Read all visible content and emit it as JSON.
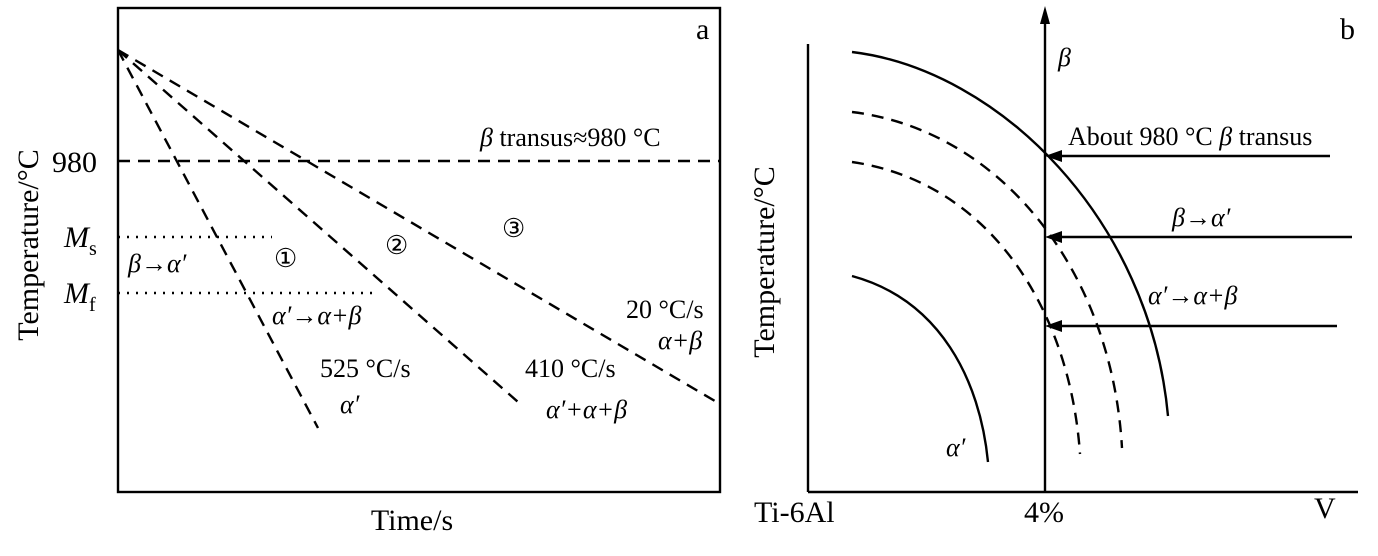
{
  "panel_a": {
    "panel_letter": "a",
    "ylabel": "Temperature/°C",
    "xlabel": "Time/s",
    "y_tick_980": "980",
    "ms_symbol": "M",
    "ms_sub": "s",
    "mf_symbol": "M",
    "mf_sub": "f",
    "transus_beta": "β",
    "transus_rest": " transus≈980 °C",
    "beta_to_alpha_prime": "β→α′",
    "decomp_label": "α′→α+β",
    "curve1_marker": "①",
    "curve2_marker": "②",
    "curve3_marker": "③",
    "curve1_rate": "525 °C/s",
    "curve1_product": "α′",
    "curve2_rate": "410 °C/s",
    "curve2_product": "α′+α+β",
    "curve3_rate": "20 °C/s",
    "curve3_product": "α+β"
  },
  "panel_b": {
    "panel_letter": "b",
    "ylabel": "Temperature/°C",
    "x_left": "Ti-6Al",
    "x_mid": "4%",
    "x_right": "V",
    "beta_axis": "β",
    "transus_text": "About 980 °C ",
    "transus_beta": "β",
    "transus_tail": " transus",
    "arrow2_label": "β→α′",
    "arrow3_label": "α′→α+β",
    "alpha_prime": "α′"
  }
}
